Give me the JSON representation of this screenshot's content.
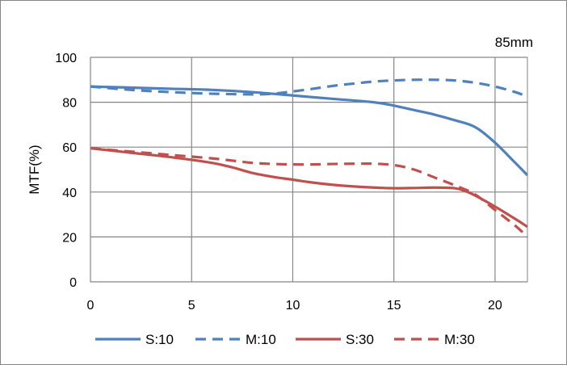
{
  "chart_data": {
    "type": "line",
    "annotation": "85mm",
    "xlabel": "",
    "ylabel": "MTF(%)",
    "xlim": [
      0,
      21.6
    ],
    "ylim": [
      0,
      100
    ],
    "x_ticks": [
      0,
      5,
      10,
      15,
      20
    ],
    "y_ticks": [
      0,
      20,
      40,
      60,
      80,
      100
    ],
    "grid": true,
    "legend_position": "bottom",
    "series": [
      {
        "name": "S:10",
        "color": "#4f81bd",
        "dash": "solid",
        "x": [
          0,
          2,
          4,
          6,
          8,
          10,
          12,
          14,
          15,
          16,
          17,
          18,
          19,
          20,
          21,
          21.6
        ],
        "y": [
          87,
          86.5,
          86,
          85.5,
          84.5,
          83,
          81.5,
          80,
          78.5,
          76.5,
          74.5,
          72,
          69,
          62,
          53,
          47.5
        ]
      },
      {
        "name": "M:10",
        "color": "#4f81bd",
        "dash": "dashed",
        "x": [
          0,
          2,
          4,
          6,
          8,
          9,
          10,
          11,
          12,
          13,
          14,
          15,
          16,
          17,
          18,
          19,
          20,
          21,
          21.6
        ],
        "y": [
          87,
          85.5,
          84.5,
          83.8,
          83.5,
          83.8,
          84.8,
          86,
          87.3,
          88.3,
          89.2,
          89.7,
          90,
          90,
          89.7,
          88.7,
          87,
          84.5,
          82.5
        ]
      },
      {
        "name": "S:30",
        "color": "#c0504d",
        "dash": "solid",
        "x": [
          0,
          2,
          4,
          6,
          7,
          8,
          9,
          10,
          11,
          12,
          13,
          14,
          15,
          16,
          17,
          18,
          18.5,
          19,
          20,
          21,
          21.6
        ],
        "y": [
          59.5,
          57.5,
          55.5,
          53,
          51,
          48.5,
          46.8,
          45.5,
          44.2,
          43.2,
          42.5,
          42,
          41.7,
          41.8,
          42,
          41.7,
          40.5,
          38.5,
          33.5,
          28,
          24.5
        ]
      },
      {
        "name": "M:30",
        "color": "#c0504d",
        "dash": "dashed",
        "x": [
          0,
          2,
          4,
          6,
          7,
          8,
          9,
          10,
          11,
          12,
          13,
          14,
          15,
          16,
          17,
          18,
          19,
          20,
          21,
          21.6
        ],
        "y": [
          59.5,
          58,
          56.5,
          55,
          54,
          53,
          52.5,
          52.3,
          52.3,
          52.5,
          52.6,
          52.6,
          52,
          50,
          46.5,
          43,
          39,
          32,
          25,
          20
        ]
      }
    ]
  }
}
